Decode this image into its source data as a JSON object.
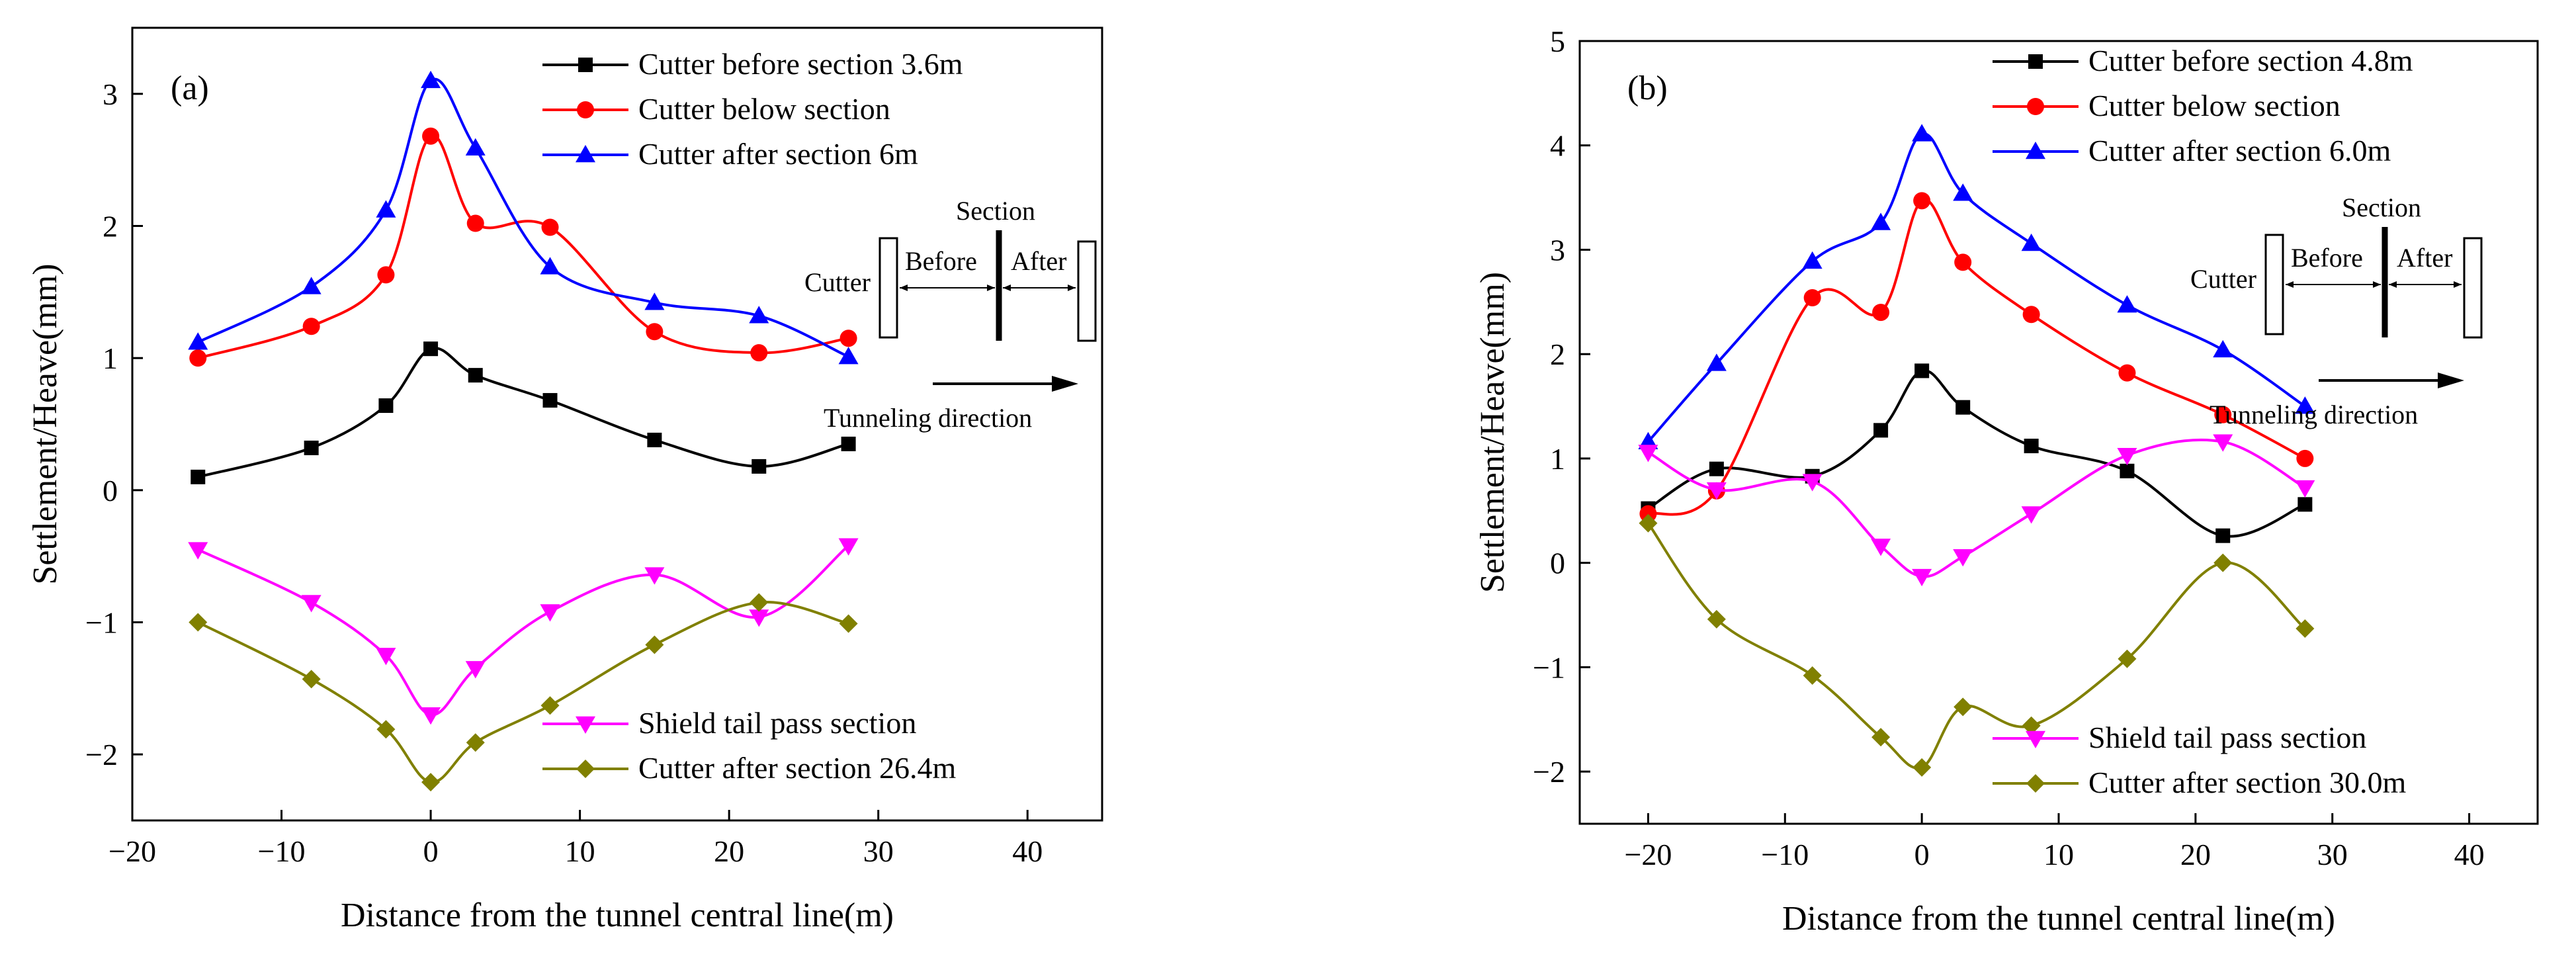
{
  "chart_data": [
    {
      "type": "line",
      "panel_label": "(a)",
      "xlabel": "Distance from the tunnel central line(m)",
      "ylabel": "Settlement/Heave(mm)",
      "xlim": [
        -20,
        45
      ],
      "ylim": [
        -2.5,
        3.5
      ],
      "xticks": [
        -20,
        -10,
        0,
        10,
        20,
        30,
        40
      ],
      "xtick_labels": [
        "−20",
        "−10",
        "0",
        "10",
        "20",
        "30",
        "40"
      ],
      "yticks": [
        -2,
        -1,
        0,
        1,
        2,
        3
      ],
      "ytick_labels": [
        "−2",
        "−1",
        "0",
        "1",
        "2",
        "3"
      ],
      "legend_top": "top-right",
      "legend_bottom": "bottom-right",
      "x": [
        -15.6,
        -8,
        -3,
        0,
        3,
        8,
        15,
        22,
        28
      ],
      "series": [
        {
          "name": "Cutter before section 3.6m",
          "color": "#000000",
          "marker": "square",
          "legend": "top",
          "values": [
            0.1,
            0.32,
            0.64,
            1.07,
            0.87,
            0.68,
            0.38,
            0.18,
            0.35
          ]
        },
        {
          "name": "Cutter below section",
          "color": "#ff0000",
          "marker": "circle",
          "legend": "top",
          "values": [
            1.0,
            1.24,
            1.63,
            2.68,
            2.02,
            1.99,
            1.2,
            1.04,
            1.15
          ]
        },
        {
          "name": "Cutter after section 6m",
          "color": "#0000ff",
          "marker": "triangle-up",
          "legend": "top",
          "values": [
            1.12,
            1.54,
            2.12,
            3.1,
            2.59,
            1.69,
            1.42,
            1.32,
            1.01
          ]
        },
        {
          "name": "Shield tail pass section",
          "color": "#ff00ff",
          "marker": "triangle-down",
          "legend": "bottom",
          "values": [
            -0.45,
            -0.85,
            -1.25,
            -1.7,
            -1.35,
            -0.92,
            -0.64,
            -0.96,
            -0.42
          ]
        },
        {
          "name": "Cutter after section 26.4m",
          "color": "#808000",
          "marker": "diamond",
          "legend": "bottom",
          "values": [
            -1.0,
            -1.43,
            -1.81,
            -2.21,
            -1.91,
            -1.63,
            -1.17,
            -0.85,
            -1.01
          ]
        }
      ],
      "inset": {
        "cutter": "Cutter",
        "section": "Section",
        "before": "Before",
        "after": "After",
        "direction": "Tunneling direction"
      }
    },
    {
      "type": "line",
      "panel_label": "(b)",
      "xlabel": "Distance from the tunnel central line(m)",
      "ylabel": "Settlement/Heave(mm)",
      "xlim": [
        -25,
        45
      ],
      "ylim": [
        -2.5,
        5
      ],
      "xticks": [
        -20,
        -10,
        0,
        10,
        20,
        30,
        40
      ],
      "xtick_labels": [
        "−20",
        "−10",
        "0",
        "10",
        "20",
        "30",
        "40"
      ],
      "yticks": [
        -2,
        -1,
        0,
        1,
        2,
        3,
        4,
        5
      ],
      "ytick_labels": [
        "−2",
        "−1",
        "0",
        "1",
        "2",
        "3",
        "4",
        "5"
      ],
      "legend_top": "top-right",
      "legend_bottom": "bottom-right",
      "x": [
        -20,
        -15,
        -8,
        -3,
        0,
        3,
        8,
        15,
        22,
        28
      ],
      "series": [
        {
          "name": "Cutter before section 4.8m",
          "color": "#000000",
          "marker": "square",
          "legend": "top",
          "values": [
            0.52,
            0.9,
            0.83,
            1.27,
            1.84,
            1.49,
            1.12,
            0.88,
            0.26,
            0.56
          ]
        },
        {
          "name": "Cutter below section",
          "color": "#ff0000",
          "marker": "circle",
          "legend": "top",
          "values": [
            0.47,
            0.69,
            2.54,
            2.4,
            3.47,
            2.88,
            2.38,
            1.82,
            1.42,
            1.0
          ]
        },
        {
          "name": "Cutter after section 6.0m",
          "color": "#0000ff",
          "marker": "triangle-up",
          "legend": "top",
          "values": [
            1.16,
            1.91,
            2.89,
            3.26,
            4.11,
            3.54,
            3.06,
            2.47,
            2.04,
            1.5
          ]
        },
        {
          "name": "Shield tail pass section",
          "color": "#ff00ff",
          "marker": "triangle-down",
          "legend": "bottom",
          "values": [
            1.06,
            0.7,
            0.78,
            0.16,
            -0.13,
            0.06,
            0.47,
            1.03,
            1.16,
            0.72
          ]
        },
        {
          "name": "Cutter after section 30.0m",
          "color": "#808000",
          "marker": "diamond",
          "legend": "bottom",
          "values": [
            0.38,
            -0.54,
            -1.08,
            -1.67,
            -1.96,
            -1.38,
            -1.56,
            -0.92,
            0.0,
            -0.63
          ]
        }
      ],
      "inset": {
        "cutter": "Cutter",
        "section": "Section",
        "before": "Before",
        "after": "After",
        "direction": "Tunneling direction"
      }
    }
  ]
}
